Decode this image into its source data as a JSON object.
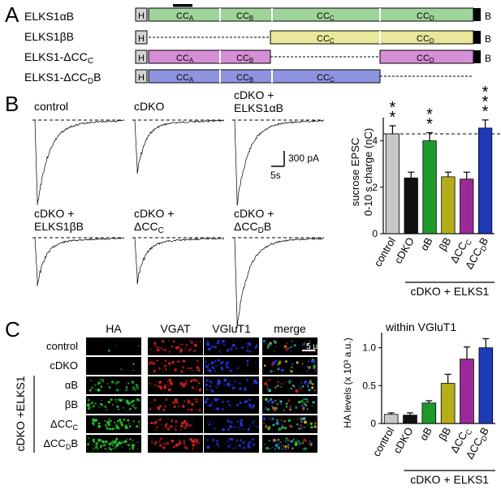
{
  "panels": {
    "A": "A",
    "B": "B",
    "C": "C"
  },
  "panelA": {
    "constructs": [
      {
        "name": "ELKS1αB",
        "segments": [
          "H",
          "CC_A",
          "CC_B",
          "CC_C",
          "CC_D",
          "B"
        ]
      },
      {
        "name": "ELKS1βB",
        "segments": [
          "H",
          "CC_C",
          "CC_D",
          "B"
        ]
      },
      {
        "name": "ELKS1-ΔCC_C",
        "segments": [
          "H",
          "CC_A",
          "CC_B",
          "CC_D",
          "B"
        ]
      },
      {
        "name": "ELKS1-ΔCC_DB",
        "segments": [
          "H",
          "CC_A",
          "CC_B",
          "CC_C"
        ]
      }
    ],
    "colors": {
      "alphaB": "#9ed39a",
      "betaB": "#e8e79a",
      "dCCc": "#d68fd6",
      "dCCdB": "#8f94e0",
      "H": "#d4d4d4"
    }
  },
  "panelB": {
    "trace_labels": [
      [
        "control"
      ],
      [
        "cDKO"
      ],
      [
        "cDKO +",
        "ELKS1αB"
      ],
      [
        "cDKO +",
        "ELKS1βB"
      ],
      [
        "cDKO +",
        "ΔCC_C"
      ],
      [
        "cDKO +",
        "ΔCC_DB"
      ]
    ],
    "scale_amp": "300 pA",
    "scale_time": "5s"
  },
  "chart_data": [
    {
      "type": "bar",
      "ylabel": "sucrose EPSC 0-10 s charge (nC)",
      "ylim": [
        0,
        5
      ],
      "yticks": [
        0,
        2,
        4
      ],
      "categories": [
        "control",
        "cDKO",
        "αB",
        "βB",
        "ΔCC_C",
        "ΔCC_DB"
      ],
      "values": [
        4.3,
        2.4,
        4.0,
        2.45,
        2.35,
        4.55
      ],
      "errors": [
        0.35,
        0.25,
        0.35,
        0.2,
        0.3,
        0.35
      ],
      "colors": [
        "#c8c8c8",
        "#111111",
        "#1f9a2a",
        "#b5ad1a",
        "#9a2a9a",
        "#1f3ab8"
      ],
      "significance": [
        "**",
        "",
        "**",
        "",
        "",
        "***"
      ],
      "reference_line": 4.3,
      "group_label": "cDKO + ELKS1"
    },
    {
      "type": "bar",
      "title": "within VGluT1",
      "ylabel": "HA levels (x 10³ a.u.)",
      "ylim": [
        0,
        1.2
      ],
      "yticks": [
        0,
        0.5,
        1.0
      ],
      "categories": [
        "control",
        "cDKO",
        "αB",
        "βB",
        "ΔCC_C",
        "ΔCC_DB"
      ],
      "values": [
        0.12,
        0.11,
        0.27,
        0.53,
        0.85,
        1.0
      ],
      "errors": [
        0.02,
        0.03,
        0.03,
        0.12,
        0.16,
        0.12
      ],
      "colors": [
        "#c8c8c8",
        "#111111",
        "#1f9a2a",
        "#b5ad1a",
        "#9a2a9a",
        "#1f3ab8"
      ],
      "group_label": "cDKO + ELKS1"
    }
  ],
  "panelC": {
    "columns": [
      "HA",
      "VGAT",
      "VGluT1",
      "merge"
    ],
    "rows": [
      "control",
      "cDKO",
      "αB",
      "βB",
      "ΔCC_C",
      "ΔCC_DB"
    ],
    "side_label": "cDKO +ELKS1",
    "scale_label": "5 μm"
  }
}
